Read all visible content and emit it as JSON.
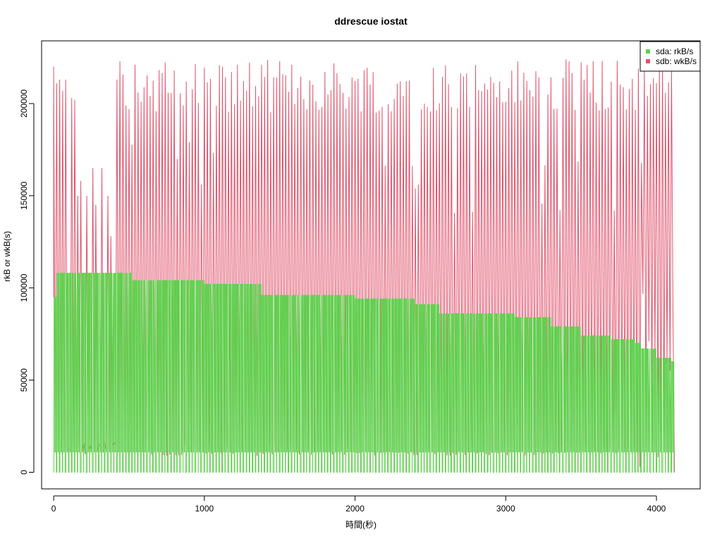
{
  "chart_data": {
    "type": "line",
    "title": "ddrescue iostat",
    "xlabel": "時間(秒)",
    "ylabel": "rkB or wkB(s)",
    "xlim": [
      -80,
      4290
    ],
    "ylim": [
      -9000,
      234000
    ],
    "xticks": [
      0,
      1000,
      2000,
      3000,
      4000
    ],
    "yticks": [
      0,
      50000,
      100000,
      150000,
      200000
    ],
    "x_tick_labels": [
      "0",
      "1000",
      "2000",
      "3000",
      "4000"
    ],
    "y_tick_labels": [
      "0",
      "50000",
      "100000",
      "150000",
      "200000"
    ],
    "grid": false,
    "legend_position": "top-right",
    "x_max": 4120,
    "series": [
      {
        "name": "sda: rkB/s",
        "color": "#61D04F",
        "description": "Read rate; pulses between 0 and a plateau that steps down over time",
        "plateaus": [
          [
            0,
            95000
          ],
          [
            10,
            108000
          ],
          [
            520,
            104000
          ],
          [
            1000,
            102000
          ],
          [
            1380,
            96000
          ],
          [
            2000,
            94000
          ],
          [
            2400,
            91000
          ],
          [
            2550,
            86000
          ],
          [
            3050,
            84000
          ],
          [
            3300,
            79000
          ],
          [
            3500,
            74000
          ],
          [
            3700,
            72000
          ],
          [
            3850,
            70000
          ],
          [
            3900,
            67000
          ],
          [
            4000,
            62000
          ],
          [
            4100,
            60000
          ]
        ],
        "period_sec": 20,
        "low_value": 0,
        "mid_value": 11000
      },
      {
        "name": "sdb: wkB/s",
        "color": "#DF536B",
        "description": "Write rate; baseline ~12000 with frequent spikes up to ~220000",
        "baseline": 12000,
        "peak_range": [
          195000,
          224000
        ],
        "early_peaks": [
          [
            5,
            220000
          ],
          [
            20,
            211000
          ],
          [
            35,
            213000
          ],
          [
            55,
            207000
          ],
          [
            75,
            213000
          ],
          [
            110,
            203000
          ],
          [
            130,
            202000
          ],
          [
            150,
            150000
          ],
          [
            180,
            158000
          ],
          [
            220,
            150000
          ],
          [
            250,
            165000
          ],
          [
            280,
            145000
          ],
          [
            310,
            165000
          ],
          [
            350,
            150000
          ],
          [
            380,
            128000
          ],
          [
            420,
            213000
          ]
        ],
        "period_sec": 20,
        "dense_region": [
          3880,
          4120
        ],
        "dense_band": [
          0,
          106000
        ]
      }
    ]
  }
}
